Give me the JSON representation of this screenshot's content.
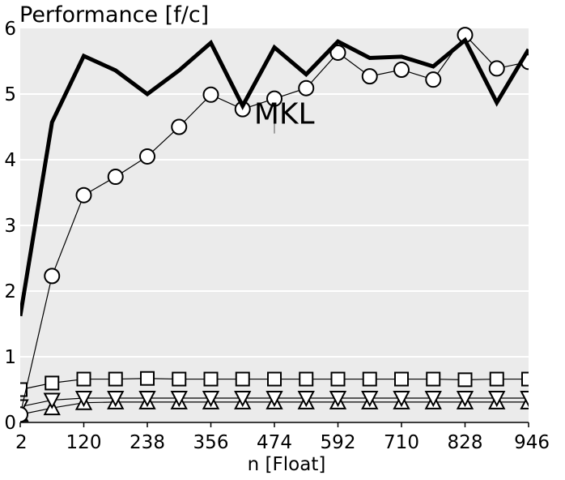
{
  "chart_data": {
    "type": "line",
    "title": "Performance [f/c]",
    "xlabel": "n [Float]",
    "ylabel": "",
    "xlim": [
      2,
      946
    ],
    "ylim": [
      0,
      6
    ],
    "grid": true,
    "background": "#ebebeb",
    "x_ticks": [
      2,
      120,
      238,
      356,
      474,
      592,
      710,
      828,
      946
    ],
    "y_ticks": [
      0,
      1,
      2,
      3,
      4,
      5,
      6
    ],
    "x": [
      2,
      61,
      120,
      179,
      238,
      297,
      356,
      415,
      474,
      533,
      592,
      651,
      710,
      769,
      828,
      887,
      946
    ],
    "series": [
      {
        "name": "MKL",
        "style": "thick-line",
        "color": "#000000",
        "values": [
          1.62,
          4.57,
          5.58,
          5.36,
          5.0,
          5.36,
          5.78,
          4.82,
          5.71,
          5.3,
          5.8,
          5.55,
          5.57,
          5.42,
          5.82,
          4.87,
          5.68
        ]
      },
      {
        "name": "",
        "style": "circle",
        "color": "#000000",
        "values": [
          0.12,
          2.23,
          3.46,
          3.74,
          4.05,
          4.5,
          4.99,
          4.77,
          4.93,
          5.09,
          5.63,
          5.27,
          5.37,
          5.22,
          5.9,
          5.39,
          5.49
        ]
      },
      {
        "name": "",
        "style": "square",
        "color": "#000000",
        "values": [
          0.5,
          0.6,
          0.66,
          0.66,
          0.67,
          0.66,
          0.66,
          0.66,
          0.66,
          0.66,
          0.66,
          0.66,
          0.66,
          0.66,
          0.65,
          0.66,
          0.66
        ]
      },
      {
        "name": "",
        "style": "triangle-down",
        "color": "#000000",
        "values": [
          0.24,
          0.34,
          0.37,
          0.37,
          0.37,
          0.37,
          0.37,
          0.37,
          0.37,
          0.37,
          0.37,
          0.37,
          0.37,
          0.37,
          0.37,
          0.37,
          0.37
        ]
      },
      {
        "name": "",
        "style": "triangle-up",
        "color": "#000000",
        "values": [
          0.12,
          0.22,
          0.3,
          0.31,
          0.31,
          0.31,
          0.31,
          0.31,
          0.31,
          0.31,
          0.31,
          0.31,
          0.31,
          0.31,
          0.31,
          0.31,
          0.31
        ]
      }
    ],
    "annotations": [
      {
        "text": "MKL",
        "x": 533,
        "y": 4.7
      }
    ]
  }
}
